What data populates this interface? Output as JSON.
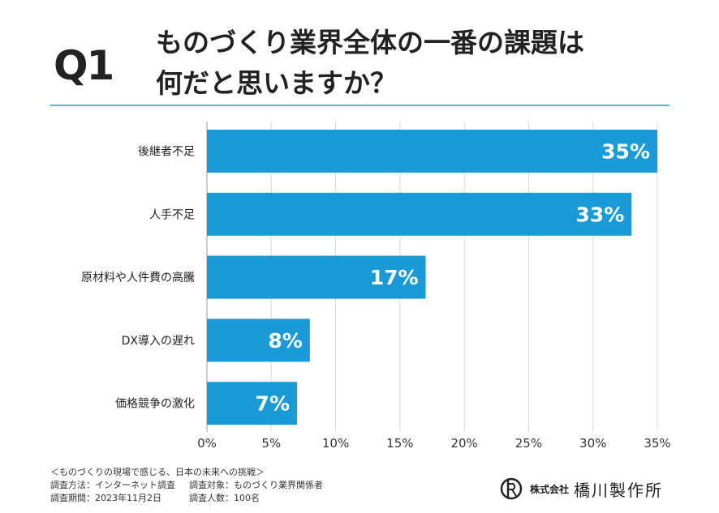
{
  "header": {
    "question": "Q1",
    "title_line1": "ものづくり業界全体の一番の課題は",
    "title_line2": "何だと思いますか？"
  },
  "chart_data": {
    "type": "bar",
    "orientation": "horizontal",
    "categories": [
      "後継者不足",
      "人手不足",
      "原材料や人件費の高騰",
      "DX導入の遅れ",
      "価格競争の激化"
    ],
    "values": [
      35,
      33,
      17,
      8,
      7
    ],
    "data_labels": [
      "35%",
      "33%",
      "17%",
      "8%",
      "7%"
    ],
    "xlim": [
      0,
      35
    ],
    "xticks": [
      "0%",
      "5%",
      "10%",
      "15%",
      "20%",
      "25%",
      "30%",
      "35%"
    ],
    "grid": true,
    "bar_color": "#1a9ad6"
  },
  "footer": {
    "survey_title": "＜ものづくりの現場で感じる、日本の未来への挑戦＞",
    "method": "調査方法：インターネット調査",
    "target": "調査対象：ものづくり業界関係者",
    "period": "調査期間：2023年11月2日",
    "count": "調査人数：100名"
  },
  "logo": {
    "company_prefix": "株式会社",
    "company_name": "橋川製作所"
  }
}
